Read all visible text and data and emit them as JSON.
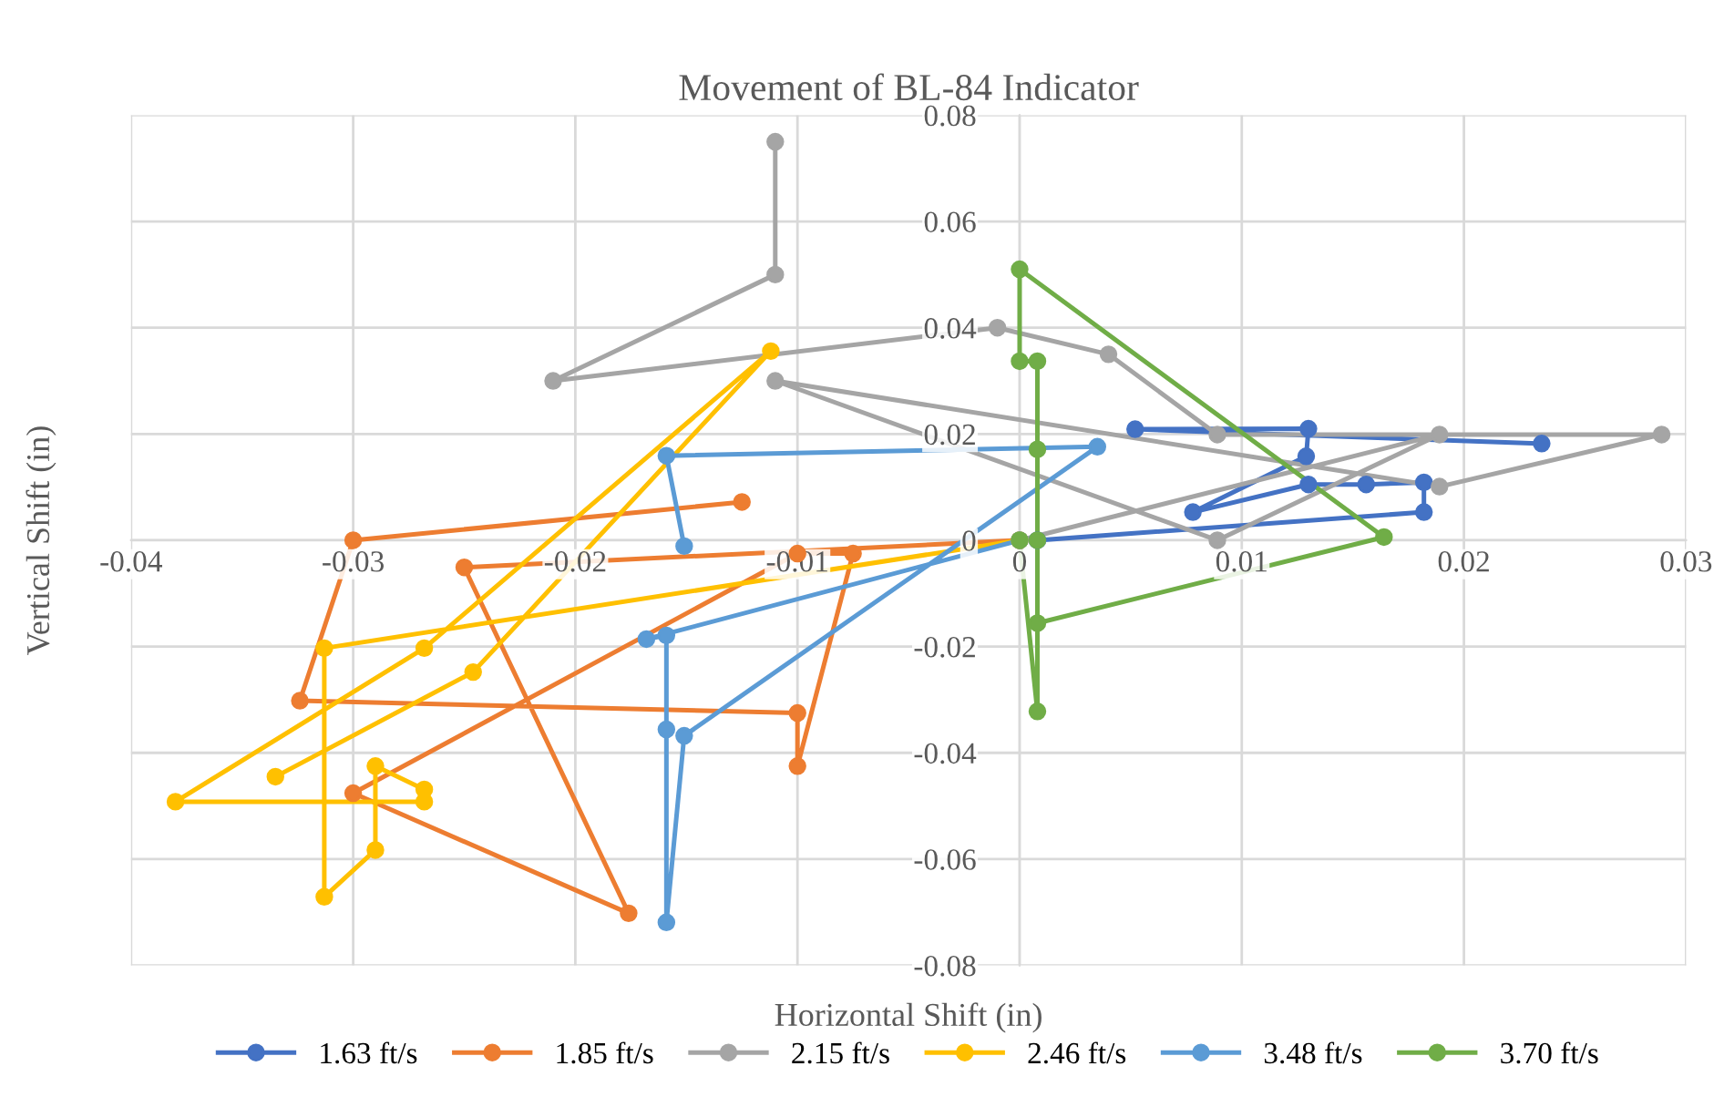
{
  "chart_data": {
    "type": "line",
    "title": "Movement of BL-84 Indicator",
    "xlabel": "Horizontal Shift (in)",
    "ylabel": "Vertical Shift (in)",
    "xlim": [
      -0.04,
      0.03
    ],
    "xticks": [
      -0.04,
      -0.03,
      -0.02,
      -0.01,
      0,
      0.01,
      0.02,
      0.03
    ],
    "ylim": [
      -0.08,
      0.08
    ],
    "yticks": [
      -0.08,
      -0.06,
      -0.04,
      -0.02,
      0,
      0.02,
      0.04,
      0.06,
      0.08
    ],
    "grid": true,
    "legend": "bottom",
    "marker": "circle",
    "line_style": "solid",
    "series": [
      {
        "name": "1.63 ft/s",
        "color": "#4472c4",
        "x": [
          0.0008,
          0.0182,
          0.0182,
          0.0156,
          0.013,
          0.0078,
          0.0129,
          0.013,
          0.0052,
          0.0235
        ],
        "values": [
          0,
          0.0053,
          0.0109,
          0.0105,
          0.0105,
          0.0053,
          0.0158,
          0.021,
          0.0209,
          0.0182
        ]
      },
      {
        "name": "1.85 ft/s",
        "color": "#ed7d31",
        "x": [
          0,
          -0.025,
          -0.0176,
          -0.03,
          -0.01,
          -0.0075,
          -0.01,
          -0.01,
          -0.0324,
          -0.03,
          -0.0125
        ],
        "values": [
          0,
          -0.0051,
          -0.0702,
          -0.0476,
          -0.0025,
          -0.0025,
          -0.0425,
          -0.0325,
          -0.0302,
          0,
          0.0072
        ]
      },
      {
        "name": "2.15 ft/s",
        "color": "#a5a5a5",
        "x": [
          0,
          0.0189,
          0.0089,
          -0.011,
          0.0189,
          0.0289,
          0.0089,
          0.004,
          -0.001,
          -0.021,
          -0.011,
          -0.011
        ],
        "values": [
          0,
          0.0199,
          0,
          0.03,
          0.0101,
          0.0199,
          0.0199,
          0.035,
          0.04,
          0.03,
          0.05,
          0.075
        ]
      },
      {
        "name": "2.46 ft/s",
        "color": "#ffc000",
        "x": [
          0,
          -0.0313,
          -0.0313,
          -0.029,
          -0.029,
          -0.0268,
          -0.0268,
          -0.038,
          -0.0268,
          -0.0112,
          -0.0246,
          -0.0335
        ],
        "values": [
          0,
          -0.0203,
          -0.0671,
          -0.0583,
          -0.0425,
          -0.0469,
          -0.0492,
          -0.0492,
          -0.0203,
          0.0356,
          -0.0248,
          -0.0445
        ]
      },
      {
        "name": "3.48 ft/s",
        "color": "#5b9bd5",
        "x": [
          0,
          -0.0168,
          -0.0159,
          -0.0159,
          -0.0159,
          -0.0151,
          0.0035,
          -0.0159,
          -0.0151
        ],
        "values": [
          0,
          -0.0186,
          -0.0179,
          -0.0356,
          -0.0719,
          -0.0368,
          0.0176,
          0.0159,
          -0.0011
        ]
      },
      {
        "name": "3.70 ft/s",
        "color": "#70ad47",
        "x": [
          0,
          0.0008,
          0.0008,
          0.0008,
          0.0008,
          0,
          0,
          0.0164,
          0.0008
        ],
        "values": [
          0,
          -0.0322,
          0,
          0.0171,
          0.0337,
          0.0337,
          0.051,
          0.0006,
          -0.0156
        ]
      }
    ]
  }
}
